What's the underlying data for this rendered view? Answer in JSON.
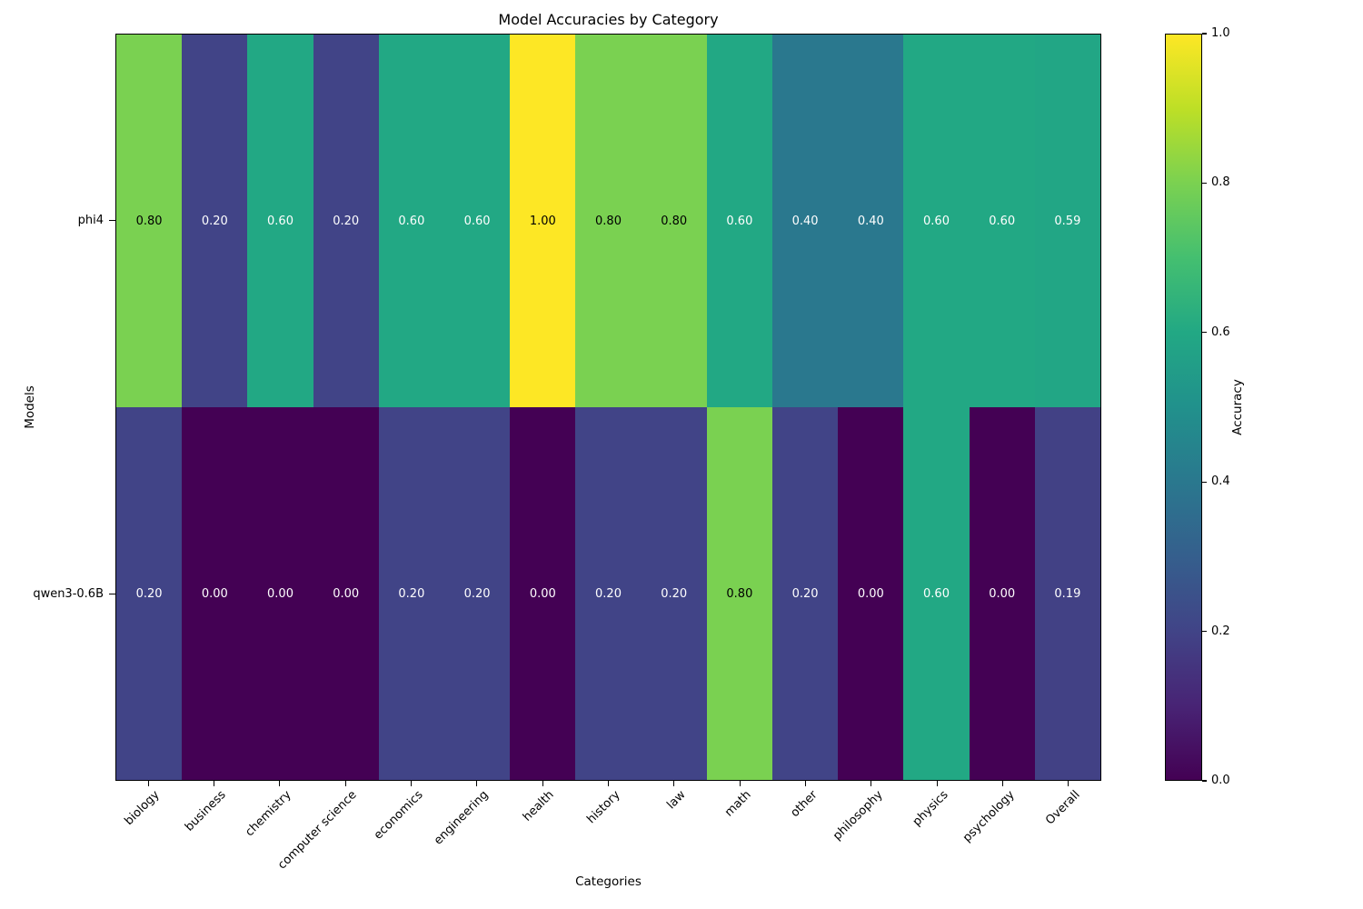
{
  "chart_data": {
    "type": "heatmap",
    "title": "Model Accuracies by Category",
    "xlabel": "Categories",
    "ylabel": "Models",
    "categories": [
      "biology",
      "business",
      "chemistry",
      "computer science",
      "economics",
      "engineering",
      "health",
      "history",
      "law",
      "math",
      "other",
      "philosophy",
      "physics",
      "psychology",
      "Overall"
    ],
    "series": [
      {
        "name": "phi4",
        "values": [
          0.8,
          0.2,
          0.6,
          0.2,
          0.6,
          0.6,
          1.0,
          0.8,
          0.8,
          0.6,
          0.4,
          0.4,
          0.6,
          0.6,
          0.59
        ]
      },
      {
        "name": "qwen3-0.6B",
        "values": [
          0.2,
          0.0,
          0.0,
          0.0,
          0.2,
          0.2,
          0.0,
          0.2,
          0.2,
          0.8,
          0.2,
          0.0,
          0.6,
          0.0,
          0.19
        ]
      }
    ],
    "value_format_decimals": 2,
    "vmin": 0.0,
    "vmax": 1.0,
    "grid": false,
    "colorbar": {
      "label": "Accuracy",
      "ticks": [
        1.0,
        0.8,
        0.6,
        0.4,
        0.2,
        0.0
      ],
      "position": "right"
    },
    "colormap": {
      "name": "viridis",
      "stops": [
        "#440154",
        "#482475",
        "#414487",
        "#355f8d",
        "#2a788e",
        "#21918c",
        "#22a884",
        "#44bf70",
        "#7ad151",
        "#bddf26",
        "#fde725"
      ]
    },
    "annotation_text_colors": {
      "dark_cell_text": "#ffffff",
      "light_cell_text": "#000000",
      "light_threshold": 0.7
    }
  }
}
